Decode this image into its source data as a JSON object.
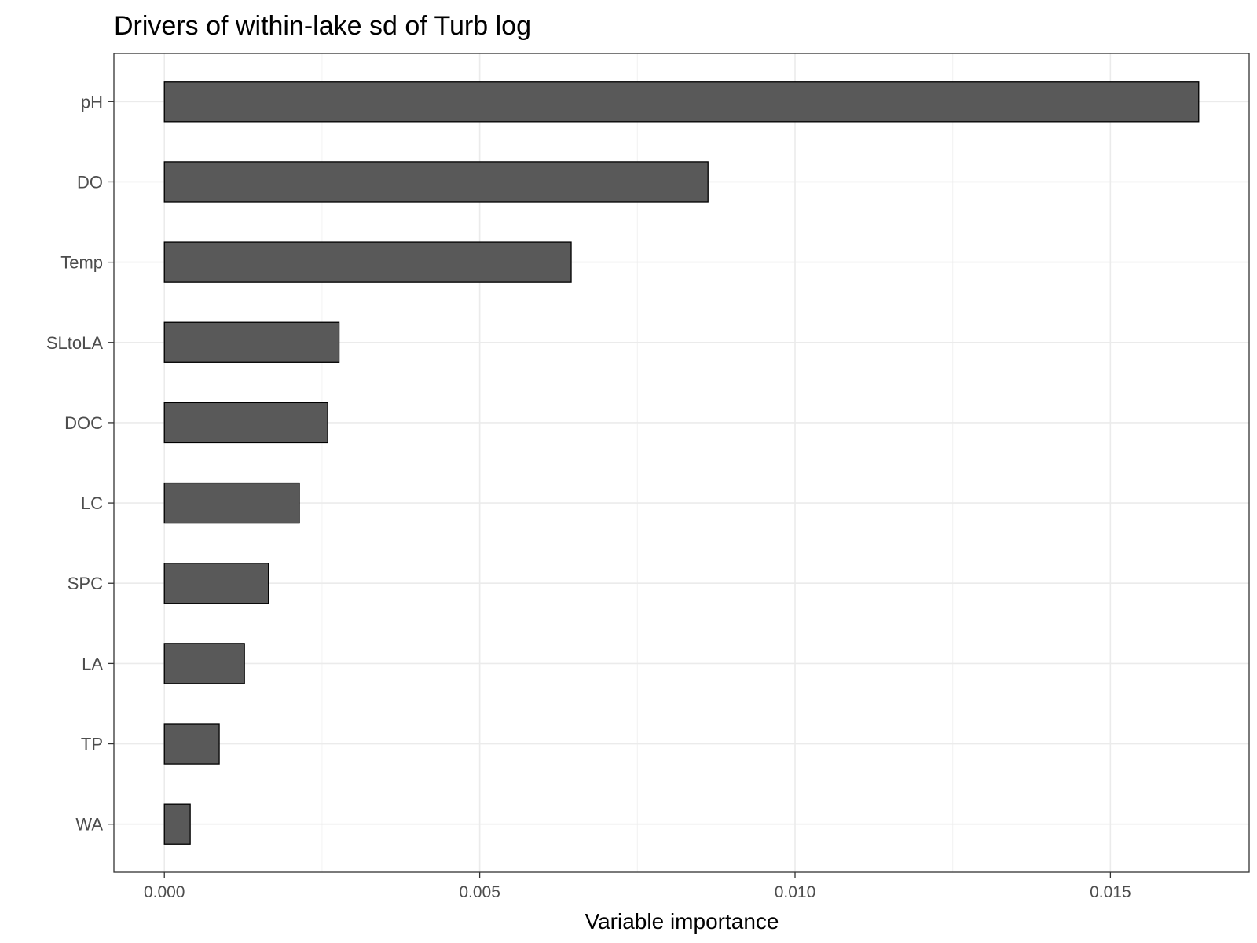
{
  "chart_data": {
    "type": "bar",
    "orientation": "horizontal",
    "title": "Drivers of within-lake sd of Turb log",
    "xlabel": "Variable importance",
    "ylabel": "",
    "categories": [
      "pH",
      "DO",
      "Temp",
      "SLtoLA",
      "DOC",
      "LC",
      "SPC",
      "LA",
      "TP",
      "WA"
    ],
    "values": [
      0.0164,
      0.00862,
      0.00645,
      0.00277,
      0.00259,
      0.00214,
      0.00165,
      0.00127,
      0.00087,
      0.00041
    ],
    "xlim": [
      -0.0008,
      0.0172
    ],
    "xticks": [
      0.0,
      0.005,
      0.01,
      0.015
    ],
    "xtick_labels": [
      "0.000",
      "0.005",
      "0.010",
      "0.015"
    ],
    "grid": true,
    "legend": "none",
    "colors": {
      "bar_fill": "#595959",
      "bar_stroke": "#000000",
      "grid_major": "#ebebeb",
      "grid_minor": "#f2f2f2",
      "panel_border": "#333333"
    }
  }
}
